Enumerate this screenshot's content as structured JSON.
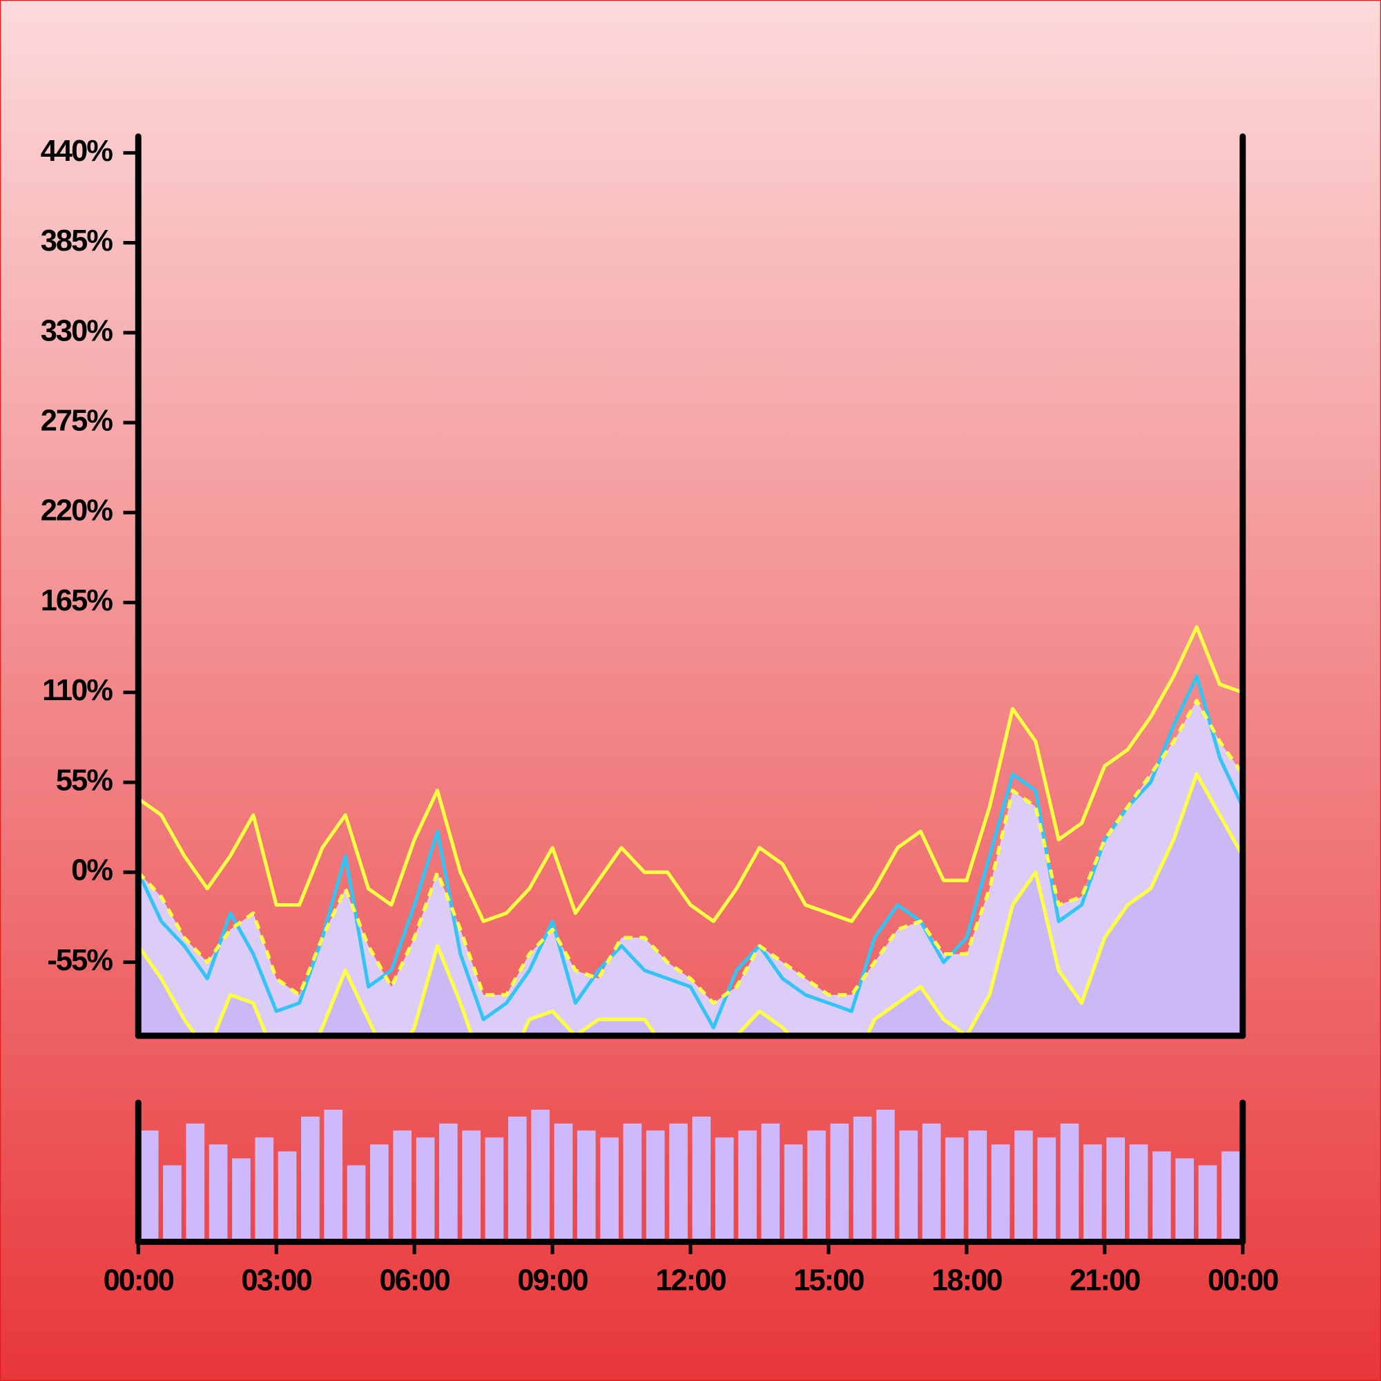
{
  "chart_data": [
    {
      "type": "line",
      "x": [
        0,
        0.5,
        1,
        1.5,
        2,
        2.5,
        3,
        3.5,
        4,
        4.5,
        5,
        5.5,
        6,
        6.5,
        7,
        7.5,
        8,
        8.5,
        9,
        9.5,
        10,
        10.5,
        11,
        11.5,
        12,
        12.5,
        13,
        13.5,
        14,
        14.5,
        15,
        15.5,
        16,
        16.5,
        17,
        17.5,
        18,
        18.5,
        19,
        19.5,
        20,
        20.5,
        21,
        21.5,
        22,
        22.5,
        23,
        23.5,
        24
      ],
      "xlim": [
        0,
        24
      ],
      "ylim": [
        -100,
        450
      ],
      "yticks": [
        {
          "value": -55,
          "label": "-55%"
        },
        {
          "value": 0,
          "label": "0%"
        },
        {
          "value": 55,
          "label": "55%"
        },
        {
          "value": 110,
          "label": "110%"
        },
        {
          "value": 165,
          "label": "165%"
        },
        {
          "value": 220,
          "label": "220%"
        },
        {
          "value": 275,
          "label": "275%"
        },
        {
          "value": 330,
          "label": "330%"
        },
        {
          "value": 385,
          "label": "385%"
        },
        {
          "value": 440,
          "label": "440%"
        }
      ],
      "series": [
        {
          "color": "#33c4f5",
          "values": [
            0,
            -30,
            -45,
            -65,
            -25,
            -50,
            -85,
            -80,
            -40,
            10,
            -70,
            -60,
            -20,
            25,
            -50,
            -90,
            -80,
            -60,
            -30,
            -80,
            -60,
            -45,
            -60,
            -65,
            -70,
            -95,
            -60,
            -45,
            -65,
            -75,
            -80,
            -85,
            -40,
            -20,
            -30,
            -55,
            -40,
            10,
            60,
            50,
            -30,
            -20,
            20,
            40,
            55,
            90,
            120,
            70,
            40
          ]
        },
        {
          "color": "#ffff44",
          "values": [
            45,
            35,
            10,
            -10,
            10,
            35,
            -20,
            -20,
            15,
            35,
            -10,
            -20,
            20,
            50,
            0,
            -30,
            -25,
            -10,
            15,
            -25,
            -5,
            15,
            0,
            0,
            -20,
            -30,
            -10,
            15,
            5,
            -20,
            -25,
            -30,
            -10,
            15,
            25,
            -5,
            -5,
            40,
            100,
            80,
            20,
            30,
            65,
            75,
            95,
            120,
            150,
            115,
            110
          ]
        },
        {
          "color": "#ffff44",
          "dashed": true,
          "fill": "#dccdf8",
          "values": [
            0,
            -15,
            -40,
            -55,
            -35,
            -25,
            -65,
            -75,
            -40,
            -10,
            -45,
            -70,
            -40,
            0,
            -35,
            -75,
            -75,
            -50,
            -35,
            -60,
            -65,
            -40,
            -40,
            -55,
            -65,
            -80,
            -70,
            -45,
            -55,
            -65,
            -75,
            -75,
            -55,
            -35,
            -30,
            -50,
            -50,
            -10,
            50,
            40,
            -20,
            -15,
            20,
            40,
            60,
            80,
            105,
            80,
            60
          ]
        },
        {
          "color": "#ffff44",
          "fill": "#cbb8f6",
          "values": [
            -45,
            -65,
            -90,
            -110,
            -75,
            -80,
            -115,
            -125,
            -95,
            -60,
            -90,
            -120,
            -95,
            -45,
            -80,
            -120,
            -120,
            -90,
            -85,
            -100,
            -90,
            -90,
            -90,
            -110,
            -110,
            -120,
            -100,
            -85,
            -95,
            -110,
            -120,
            -120,
            -90,
            -80,
            -70,
            -90,
            -100,
            -75,
            -20,
            0,
            -60,
            -80,
            -40,
            -20,
            -10,
            20,
            60,
            35,
            10
          ]
        }
      ]
    },
    {
      "type": "bar",
      "x": [
        0,
        0.5,
        1,
        1.5,
        2,
        2.5,
        3,
        3.5,
        4,
        4.5,
        5,
        5.5,
        6,
        6.5,
        7,
        7.5,
        8,
        8.5,
        9,
        9.5,
        10,
        10.5,
        11,
        11.5,
        12,
        12.5,
        13,
        13.5,
        14,
        14.5,
        15,
        15.5,
        16,
        16.5,
        17,
        17.5,
        18,
        18.5,
        19,
        19.5,
        20,
        20.5,
        21,
        21.5,
        22,
        22.5,
        23,
        23.5
      ],
      "values": [
        80,
        55,
        85,
        70,
        60,
        75,
        65,
        90,
        95,
        55,
        70,
        80,
        75,
        85,
        80,
        75,
        90,
        95,
        85,
        80,
        75,
        85,
        80,
        85,
        90,
        75,
        80,
        85,
        70,
        80,
        85,
        90,
        95,
        80,
        85,
        75,
        80,
        70,
        80,
        75,
        85,
        70,
        75,
        70,
        65,
        60,
        55,
        65
      ],
      "color": "#cdb9fb",
      "xlim": [
        0,
        24
      ],
      "ylim": [
        0,
        100
      ],
      "xticks": [
        {
          "value": 0,
          "label": "00:00"
        },
        {
          "value": 3,
          "label": "03:00"
        },
        {
          "value": 6,
          "label": "06:00"
        },
        {
          "value": 9,
          "label": "09:00"
        },
        {
          "value": 12,
          "label": "12:00"
        },
        {
          "value": 15,
          "label": "15:00"
        },
        {
          "value": 18,
          "label": "18:00"
        },
        {
          "value": 21,
          "label": "21:00"
        },
        {
          "value": 24,
          "label": "00:00"
        }
      ]
    }
  ]
}
